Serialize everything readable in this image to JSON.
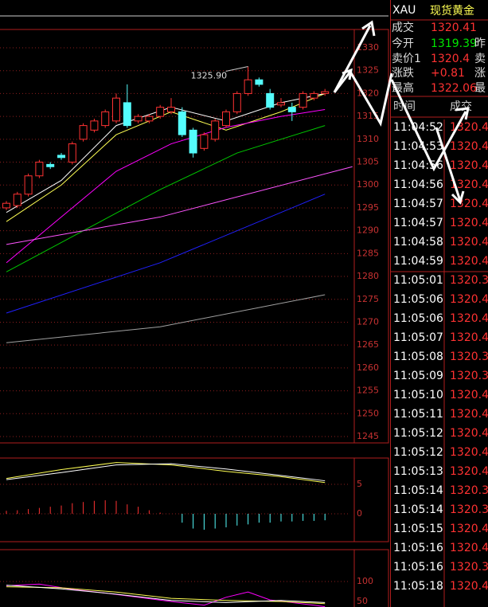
{
  "chart_data": {
    "type": "candlestick",
    "annotation": "1325.90",
    "ylim": [
      1245,
      1330
    ],
    "yticks": [
      1245,
      1250,
      1255,
      1260,
      1265,
      1270,
      1275,
      1280,
      1285,
      1290,
      1295,
      1300,
      1305,
      1310,
      1315,
      1320,
      1325,
      1330
    ],
    "candles": [
      {
        "o": 1295,
        "h": 1296.5,
        "l": 1294.5,
        "c": 1296
      },
      {
        "o": 1295.5,
        "h": 1298.5,
        "l": 1295,
        "c": 1298
      },
      {
        "o": 1298,
        "h": 1302.5,
        "l": 1297.5,
        "c": 1302
      },
      {
        "o": 1302,
        "h": 1305.5,
        "l": 1301.5,
        "c": 1305
      },
      {
        "o": 1304.5,
        "h": 1305,
        "l": 1303.5,
        "c": 1304
      },
      {
        "o": 1306.5,
        "h": 1307,
        "l": 1305.5,
        "c": 1306
      },
      {
        "o": 1305,
        "h": 1309.5,
        "l": 1304.5,
        "c": 1309
      },
      {
        "o": 1310,
        "h": 1313.5,
        "l": 1309.5,
        "c": 1313
      },
      {
        "o": 1312,
        "h": 1314.5,
        "l": 1311.5,
        "c": 1314
      },
      {
        "o": 1313,
        "h": 1316.5,
        "l": 1312.5,
        "c": 1316
      },
      {
        "o": 1314,
        "h": 1320,
        "l": 1313.5,
        "c": 1319
      },
      {
        "o": 1318,
        "h": 1322,
        "l": 1312.5,
        "c": 1313
      },
      {
        "o": 1314,
        "h": 1315.5,
        "l": 1313.5,
        "c": 1315
      },
      {
        "o": 1314,
        "h": 1315.5,
        "l": 1313.5,
        "c": 1315
      },
      {
        "o": 1315,
        "h": 1317.5,
        "l": 1314.5,
        "c": 1317
      },
      {
        "o": 1316,
        "h": 1319,
        "l": 1315.5,
        "c": 1317
      },
      {
        "o": 1316,
        "h": 1317,
        "l": 1310.5,
        "c": 1311
      },
      {
        "o": 1312,
        "h": 1312.5,
        "l": 1306,
        "c": 1307
      },
      {
        "o": 1308,
        "h": 1311.5,
        "l": 1307.5,
        "c": 1311
      },
      {
        "o": 1310,
        "h": 1314.5,
        "l": 1309.5,
        "c": 1314
      },
      {
        "o": 1313,
        "h": 1316.5,
        "l": 1312.5,
        "c": 1316
      },
      {
        "o": 1316,
        "h": 1320.5,
        "l": 1315.5,
        "c": 1320
      },
      {
        "o": 1320,
        "h": 1325.9,
        "l": 1319.5,
        "c": 1323
      },
      {
        "o": 1323,
        "h": 1323.5,
        "l": 1321.5,
        "c": 1322
      },
      {
        "o": 1320,
        "h": 1321,
        "l": 1316.5,
        "c": 1317
      },
      {
        "o": 1317.5,
        "h": 1319,
        "l": 1317,
        "c": 1318
      },
      {
        "o": 1317,
        "h": 1318,
        "l": 1314,
        "c": 1316
      },
      {
        "o": 1317,
        "h": 1320.5,
        "l": 1316.5,
        "c": 1320
      },
      {
        "o": 1319,
        "h": 1320.5,
        "l": 1318.5,
        "c": 1320
      },
      {
        "o": 1320,
        "h": 1321,
        "l": 1319.5,
        "c": 1320.4
      }
    ],
    "lines": [
      {
        "color": "#ffff54",
        "x": [
          0,
          5,
          10,
          15,
          20,
          25,
          29
        ],
        "values": [
          1292,
          1300,
          1311,
          1316,
          1312,
          1316,
          1320
        ]
      },
      {
        "color": "#ffffff",
        "x": [
          0,
          5,
          10,
          15,
          20,
          25,
          29
        ],
        "values": [
          1294,
          1301,
          1313,
          1317,
          1314,
          1318,
          1320
        ]
      },
      {
        "color": "#ff00ff",
        "x": [
          0,
          5,
          10,
          15,
          20,
          25,
          29
        ],
        "values": [
          1283,
          1293,
          1303,
          1309,
          1312.6,
          1315,
          1316.5
        ]
      },
      {
        "color": "#00c800",
        "x": [
          0,
          7,
          14,
          21,
          29
        ],
        "values": [
          1281,
          1290,
          1299,
          1307,
          1313
        ]
      },
      {
        "color": "#ff54ff",
        "x": [
          0,
          14,
          31.5
        ],
        "values": [
          1287,
          1293,
          1304
        ]
      },
      {
        "color": "#2020ff",
        "x": [
          0,
          14,
          29
        ],
        "values": [
          1272,
          1283,
          1298
        ]
      },
      {
        "color": "#a0a0a0",
        "x": [
          0,
          14,
          29
        ],
        "values": [
          1265.5,
          1269,
          1276
        ]
      }
    ],
    "macd": {
      "yticks": [
        0,
        5
      ],
      "hist": [
        0.5,
        0.6,
        0.8,
        1,
        1.2,
        1.4,
        1.8,
        2,
        2.2,
        2.3,
        2.2,
        1.6,
        1.2,
        0.6,
        0.2,
        0,
        -1.5,
        -2.5,
        -2.7,
        -2.5,
        -2.3,
        -2,
        -1.8,
        -1.5,
        -1.5,
        -1.3,
        -1.3,
        -1.2,
        -1.2,
        -1.1
      ],
      "lines": [
        {
          "color": "#ffff54",
          "x": [
            0,
            5,
            10,
            15,
            20,
            25,
            29
          ],
          "values": [
            6,
            7.5,
            8.7,
            8.3,
            7.2,
            6.3,
            5.3
          ]
        },
        {
          "color": "#ffffff",
          "x": [
            0,
            5,
            10,
            15,
            20,
            25,
            29
          ],
          "values": [
            5.8,
            7,
            8.3,
            8.5,
            7.6,
            6.5,
            5.6
          ]
        }
      ]
    },
    "kdj": {
      "yticks": [
        50,
        100
      ],
      "lines": [
        {
          "color": "#ff00ff",
          "x": [
            0,
            3,
            6,
            9,
            12,
            15,
            18,
            20,
            22,
            24,
            26,
            28,
            29
          ],
          "values": [
            92,
            95,
            85,
            78,
            70,
            62,
            55,
            70,
            80,
            65,
            60,
            55,
            52
          ]
        },
        {
          "color": "#ffff54",
          "x": [
            0,
            5,
            10,
            15,
            20,
            25,
            29
          ],
          "values": [
            90,
            88,
            80,
            68,
            64,
            62,
            58
          ]
        },
        {
          "color": "#ffffff",
          "x": [
            0,
            5,
            10,
            15,
            20,
            25,
            29
          ],
          "values": [
            93,
            86,
            76,
            64,
            60,
            64,
            60
          ]
        }
      ]
    }
  },
  "quote": {
    "symbol": "XAU",
    "name": "现货黄金",
    "rows": [
      {
        "label": "成交",
        "value": "1320.41",
        "extra": ""
      },
      {
        "label": "今开",
        "value": "1319.39",
        "extra": "昨"
      },
      {
        "label": "卖价1",
        "value": "1320.4",
        "extra": "卖"
      },
      {
        "label": "涨跌",
        "value": "+0.81",
        "extra": "涨"
      },
      {
        "label": "最高",
        "value": "1322.06",
        "extra": "最"
      }
    ]
  },
  "ticks": {
    "headers": [
      "时间",
      "成交"
    ],
    "rows": [
      [
        "11:04:52",
        "1320.4"
      ],
      [
        "11:04:53",
        "1320.4"
      ],
      [
        "11:04:56",
        "1320.4"
      ],
      [
        "11:04:56",
        "1320.4"
      ],
      [
        "11:04:57",
        "1320.4"
      ],
      [
        "11:04:57",
        "1320.4"
      ],
      [
        "11:04:58",
        "1320.4"
      ],
      [
        "11:04:59",
        "1320.4"
      ],
      [
        "11:05:01",
        "1320.3"
      ],
      [
        "11:05:06",
        "1320.4"
      ],
      [
        "11:05:06",
        "1320.4"
      ],
      [
        "11:05:07",
        "1320.4"
      ],
      [
        "11:05:08",
        "1320.3"
      ],
      [
        "11:05:09",
        "1320.3"
      ],
      [
        "11:05:10",
        "1320.4"
      ],
      [
        "11:05:11",
        "1320.4"
      ],
      [
        "11:05:12",
        "1320.4"
      ],
      [
        "11:05:12",
        "1320.4"
      ],
      [
        "11:05:13",
        "1320.4"
      ],
      [
        "11:05:14",
        "1320.3"
      ],
      [
        "11:05:14",
        "1320.3"
      ],
      [
        "11:05:15",
        "1320.4"
      ],
      [
        "11:05:16",
        "1320.4"
      ],
      [
        "11:05:16",
        "1320.3"
      ],
      [
        "11:05:18",
        "1320.4"
      ]
    ]
  }
}
